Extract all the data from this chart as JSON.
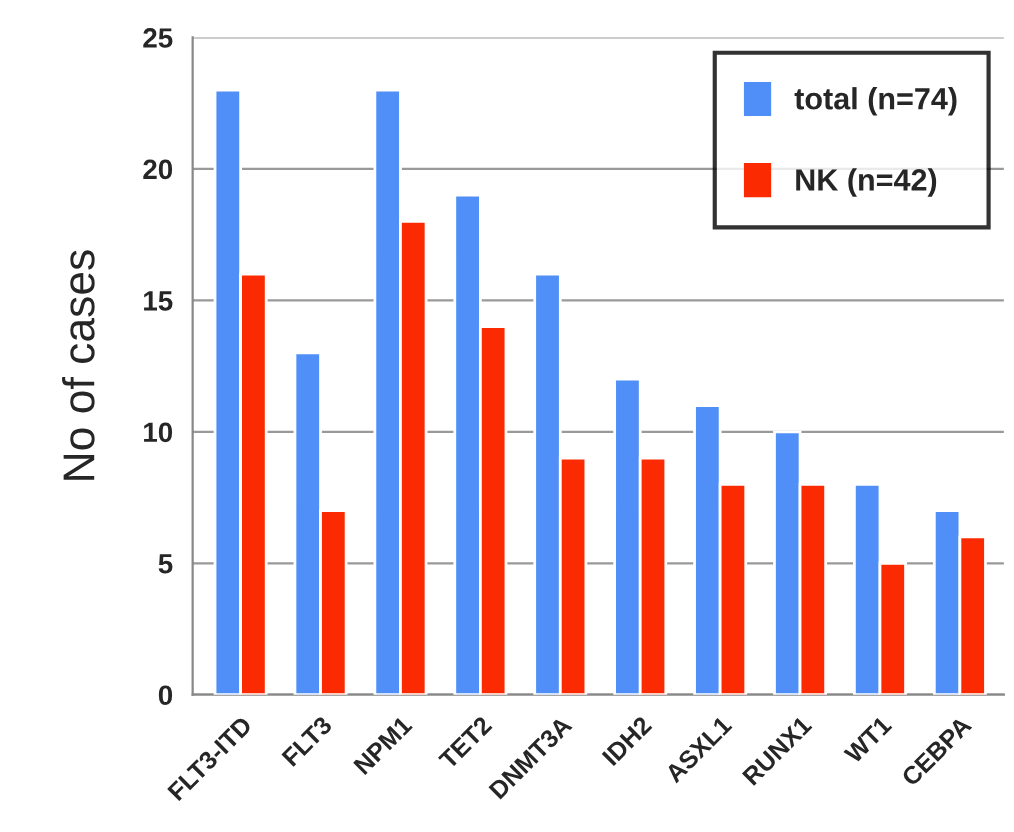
{
  "chart_data": {
    "type": "bar",
    "ylabel": "No of cases",
    "categories": [
      "FLT3-ITD",
      "FLT3",
      "NPM1",
      "TET2",
      "DNMT3A",
      "IDH2",
      "ASXL1",
      "RUNX1",
      "WT1",
      "CEBPA"
    ],
    "series": [
      {
        "name": "total (n=74)",
        "color": "#4f8ff7",
        "values": [
          23,
          13,
          23,
          19,
          16,
          12,
          11,
          10,
          8,
          7
        ]
      },
      {
        "name": "NK (n=42)",
        "color": "#fc2a00",
        "values": [
          16,
          7,
          18,
          14,
          9,
          9,
          8,
          8,
          5,
          6
        ]
      }
    ],
    "ylim": [
      0,
      25
    ],
    "yticks": [
      0,
      5,
      10,
      15,
      20,
      25
    ],
    "grid": "y",
    "legend": "top right"
  }
}
